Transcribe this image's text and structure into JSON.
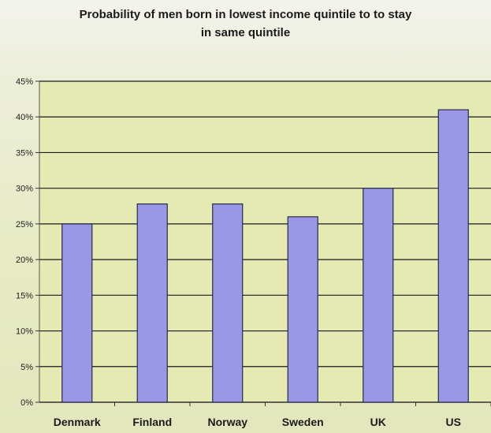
{
  "chart_data": {
    "type": "bar",
    "title_lines": [
      "Probability of men born in lowest income quintile to to stay",
      "in same quintile"
    ],
    "categories": [
      "Denmark",
      "Finland",
      "Norway",
      "Sweden",
      "UK",
      "US"
    ],
    "values": [
      25,
      27.8,
      27.8,
      26,
      30,
      41
    ],
    "ylim": [
      0,
      45
    ],
    "yticks": [
      0,
      5,
      10,
      15,
      20,
      25,
      30,
      35,
      40,
      45
    ],
    "ytick_labels": [
      "0%",
      "5%",
      "10%",
      "15%",
      "20%",
      "25%",
      "30%",
      "35%",
      "40%",
      "45%"
    ],
    "xlabel": "",
    "ylabel": "",
    "grid": true,
    "legend": "none",
    "colors": {
      "bar_fill": "#9a98e6",
      "bar_stroke": "#2a2a4a",
      "plot_bg": "#e4eab2",
      "grid": "#1a1a1a"
    }
  }
}
